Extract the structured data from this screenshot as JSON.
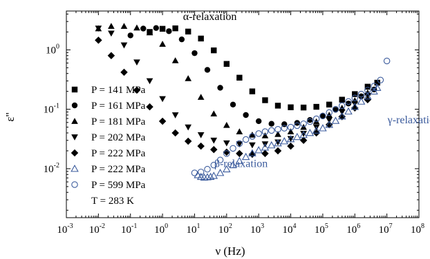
{
  "chart_data": {
    "type": "scatter",
    "xscale": "log",
    "yscale": "log",
    "xlabel": "ν (Hz)",
    "ylabel": "ε''",
    "xlim": [
      0.001,
      100000000
    ],
    "ylim": [
      0.0015,
      4.5
    ],
    "x_ticks": [
      {
        "base": "10",
        "exp": "-3",
        "value": 0.001
      },
      {
        "base": "10",
        "exp": "-2",
        "value": 0.01
      },
      {
        "base": "10",
        "exp": "-1",
        "value": 0.1
      },
      {
        "base": "10",
        "exp": "0",
        "value": 1
      },
      {
        "base": "10",
        "exp": "1",
        "value": 10
      },
      {
        "base": "10",
        "exp": "2",
        "value": 100
      },
      {
        "base": "10",
        "exp": "3",
        "value": 1000
      },
      {
        "base": "10",
        "exp": "4",
        "value": 10000
      },
      {
        "base": "10",
        "exp": "5",
        "value": 100000
      },
      {
        "base": "10",
        "exp": "6",
        "value": 1000000
      },
      {
        "base": "10",
        "exp": "7",
        "value": 10000000
      },
      {
        "base": "10",
        "exp": "8",
        "value": 100000000
      }
    ],
    "y_ticks": [
      {
        "base": "10",
        "exp": "0",
        "value": 1
      },
      {
        "base": "10",
        "exp": "-1",
        "value": 0.1
      },
      {
        "base": "10",
        "exp": "-2",
        "value": 0.01
      }
    ],
    "annotations": [
      {
        "text": "α-relaxation",
        "x": 30,
        "y": 3.2,
        "color": "#000000"
      },
      {
        "text": "γ-relaxation",
        "x": 70000000,
        "y": 0.058,
        "color": "#3a5a9c"
      },
      {
        "text": "β-relaxation",
        "x": 280,
        "y": 0.0106,
        "color": "#3a5a9c"
      }
    ],
    "legend": {
      "position": "left-lower",
      "note": "T = 283 K"
    },
    "series": [
      {
        "name": "P = 141 MPa",
        "marker": "square",
        "color": "#000000",
        "points": [
          [
            0.398,
            2.0
          ],
          [
            1.0,
            2.26
          ],
          [
            2.51,
            2.3
          ],
          [
            6.31,
            2.03
          ],
          [
            15.8,
            1.55
          ],
          [
            39.8,
            0.98
          ],
          [
            100,
            0.58
          ],
          [
            251,
            0.34
          ],
          [
            631,
            0.2
          ],
          [
            1585,
            0.142
          ],
          [
            3981,
            0.115
          ],
          [
            10000,
            0.108
          ],
          [
            25119,
            0.107
          ],
          [
            63096,
            0.11
          ],
          [
            158489,
            0.12
          ],
          [
            398107,
            0.145
          ],
          [
            1000000,
            0.18
          ],
          [
            2511886,
            0.24
          ],
          [
            5011872,
            0.28
          ]
        ]
      },
      {
        "name": "P = 161 MPa",
        "marker": "circle",
        "color": "#000000",
        "points": [
          [
            0.1,
            1.75
          ],
          [
            0.251,
            2.28
          ],
          [
            0.631,
            2.33
          ],
          [
            1.585,
            2.06
          ],
          [
            3.98,
            1.5
          ],
          [
            10,
            0.88
          ],
          [
            25.1,
            0.46
          ],
          [
            63.1,
            0.23
          ],
          [
            158,
            0.12
          ],
          [
            398,
            0.08
          ],
          [
            1000,
            0.063
          ],
          [
            2512,
            0.057
          ],
          [
            6310,
            0.056
          ],
          [
            15849,
            0.059
          ],
          [
            39811,
            0.066
          ],
          [
            100000,
            0.078
          ],
          [
            251189,
            0.098
          ],
          [
            630957,
            0.125
          ],
          [
            1584893,
            0.165
          ],
          [
            3981072,
            0.215
          ]
        ]
      },
      {
        "name": "P = 181 MPa",
        "marker": "triangle-up",
        "color": "#000000",
        "points": [
          [
            0.01,
            2.28
          ],
          [
            0.0251,
            2.5
          ],
          [
            0.0631,
            2.5
          ],
          [
            0.158,
            2.35
          ],
          [
            0.398,
            1.95
          ],
          [
            1.0,
            1.25
          ],
          [
            2.51,
            0.66
          ],
          [
            6.31,
            0.33
          ],
          [
            15.8,
            0.16
          ],
          [
            39.8,
            0.084
          ],
          [
            100,
            0.054
          ],
          [
            251,
            0.042
          ],
          [
            631,
            0.037
          ],
          [
            1585,
            0.036
          ],
          [
            3981,
            0.038
          ],
          [
            10000,
            0.042
          ],
          [
            25119,
            0.05
          ],
          [
            63096,
            0.062
          ],
          [
            158489,
            0.08
          ],
          [
            398107,
            0.105
          ],
          [
            1000000,
            0.14
          ],
          [
            2511886,
            0.19
          ]
        ]
      },
      {
        "name": "P = 202 MPa",
        "marker": "triangle-down",
        "color": "#000000",
        "points": [
          [
            0.01,
            2.3
          ],
          [
            0.0251,
            1.9
          ],
          [
            0.0631,
            1.2
          ],
          [
            0.158,
            0.62
          ],
          [
            0.398,
            0.3
          ],
          [
            1.0,
            0.15
          ],
          [
            2.51,
            0.08
          ],
          [
            6.31,
            0.05
          ],
          [
            15.8,
            0.037
          ],
          [
            39.8,
            0.03
          ],
          [
            100,
            0.027
          ],
          [
            251,
            0.026
          ],
          [
            631,
            0.025
          ],
          [
            1585,
            0.026
          ],
          [
            3981,
            0.028
          ],
          [
            10000,
            0.032
          ],
          [
            25119,
            0.039
          ],
          [
            63096,
            0.05
          ],
          [
            158489,
            0.066
          ],
          [
            398107,
            0.09
          ],
          [
            1000000,
            0.125
          ],
          [
            2511886,
            0.17
          ]
        ]
      },
      {
        "name": "P = 222 MPa",
        "marker": "diamond",
        "color": "#000000",
        "points": [
          [
            0.01,
            1.45
          ],
          [
            0.0251,
            0.8
          ],
          [
            0.0631,
            0.42
          ],
          [
            0.158,
            0.21
          ],
          [
            0.398,
            0.11
          ],
          [
            1.0,
            0.063
          ],
          [
            2.51,
            0.04
          ],
          [
            6.31,
            0.029
          ],
          [
            15.8,
            0.024
          ],
          [
            39.8,
            0.021
          ],
          [
            100,
            0.019
          ],
          [
            251,
            0.018
          ],
          [
            631,
            0.0175
          ],
          [
            1585,
            0.018
          ],
          [
            3981,
            0.02
          ],
          [
            10000,
            0.024
          ],
          [
            25119,
            0.03
          ],
          [
            63096,
            0.04
          ],
          [
            158489,
            0.055
          ],
          [
            398107,
            0.075
          ],
          [
            1000000,
            0.105
          ],
          [
            2511886,
            0.145
          ]
        ]
      },
      {
        "name": "P = 222 MPa",
        "marker": "triangle-up-open",
        "color": "#3a5a9c",
        "points": [
          [
            12.6,
            0.0078
          ],
          [
            15.8,
            0.0073
          ],
          [
            20,
            0.0071
          ],
          [
            25.1,
            0.0072
          ],
          [
            31.6,
            0.0073
          ],
          [
            39.8,
            0.0076
          ],
          [
            63.1,
            0.0085
          ],
          [
            100,
            0.0098
          ],
          [
            158,
            0.0115
          ],
          [
            251,
            0.0135
          ],
          [
            398,
            0.0158
          ],
          [
            631,
            0.0182
          ],
          [
            1000,
            0.0205
          ],
          [
            1585,
            0.0228
          ],
          [
            2512,
            0.0248
          ],
          [
            3981,
            0.0268
          ],
          [
            6310,
            0.029
          ],
          [
            10000,
            0.0315
          ],
          [
            15849,
            0.0342
          ],
          [
            25119,
            0.037
          ],
          [
            39811,
            0.04
          ],
          [
            63096,
            0.044
          ],
          [
            100000,
            0.048
          ],
          [
            158489,
            0.055
          ],
          [
            251189,
            0.064
          ],
          [
            398107,
            0.076
          ],
          [
            630957,
            0.092
          ],
          [
            1000000,
            0.11
          ],
          [
            1584893,
            0.135
          ],
          [
            2511886,
            0.165
          ],
          [
            3981072,
            0.2
          ],
          [
            5011872,
            0.23
          ]
        ]
      },
      {
        "name": "P = 599 MPa",
        "marker": "circle-open",
        "color": "#3a5a9c",
        "points": [
          [
            10,
            0.0085
          ],
          [
            15.8,
            0.0088
          ],
          [
            25.1,
            0.0098
          ],
          [
            39.8,
            0.0115
          ],
          [
            63.1,
            0.014
          ],
          [
            100,
            0.018
          ],
          [
            158,
            0.022
          ],
          [
            251,
            0.0265
          ],
          [
            398,
            0.031
          ],
          [
            631,
            0.035
          ],
          [
            1000,
            0.039
          ],
          [
            1585,
            0.042
          ],
          [
            2512,
            0.044
          ],
          [
            3981,
            0.046
          ],
          [
            6310,
            0.048
          ],
          [
            10000,
            0.05
          ],
          [
            15849,
            0.053
          ],
          [
            25119,
            0.057
          ],
          [
            39811,
            0.062
          ],
          [
            63096,
            0.069
          ],
          [
            100000,
            0.077
          ],
          [
            158489,
            0.088
          ],
          [
            251189,
            0.1
          ],
          [
            398107,
            0.115
          ],
          [
            630957,
            0.135
          ],
          [
            1000000,
            0.155
          ],
          [
            1584893,
            0.18
          ],
          [
            2511886,
            0.21
          ],
          [
            3981072,
            0.245
          ],
          [
            6309573,
            0.31
          ],
          [
            10000000,
            0.65
          ]
        ]
      }
    ]
  }
}
